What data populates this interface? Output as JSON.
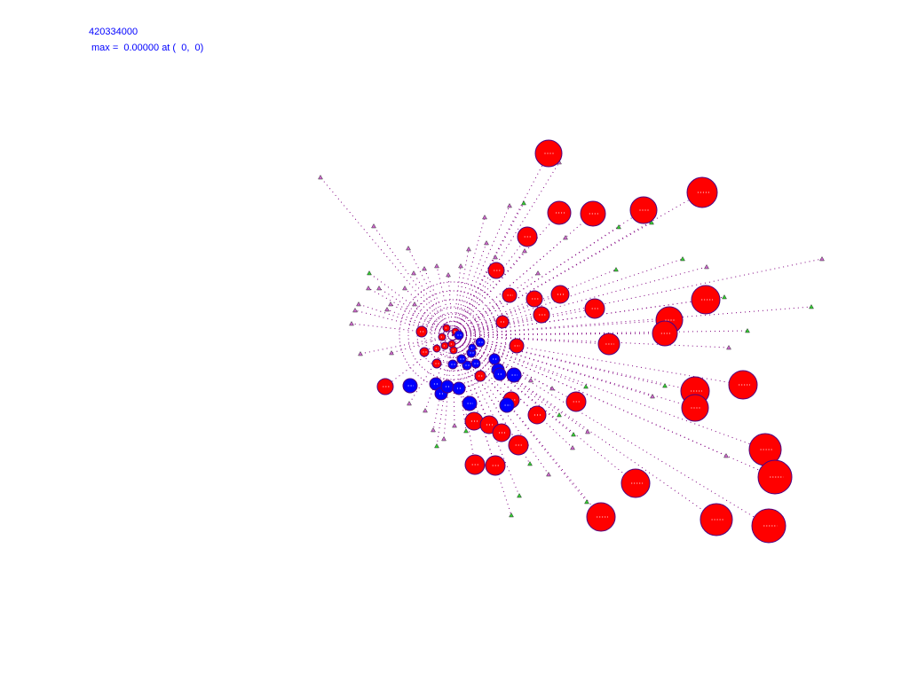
{
  "header": {
    "frame": "420334000",
    "max_text": "max =  0.00000 at (  0,  0)"
  },
  "colors": {
    "text": "#0000ff",
    "particle_red": "#ff0000",
    "particle_blue": "#0000ff",
    "outline": "#4b0082",
    "trail": "#800080",
    "marker_green": "#33cc33",
    "marker_purple": "#cc66cc"
  }
}
